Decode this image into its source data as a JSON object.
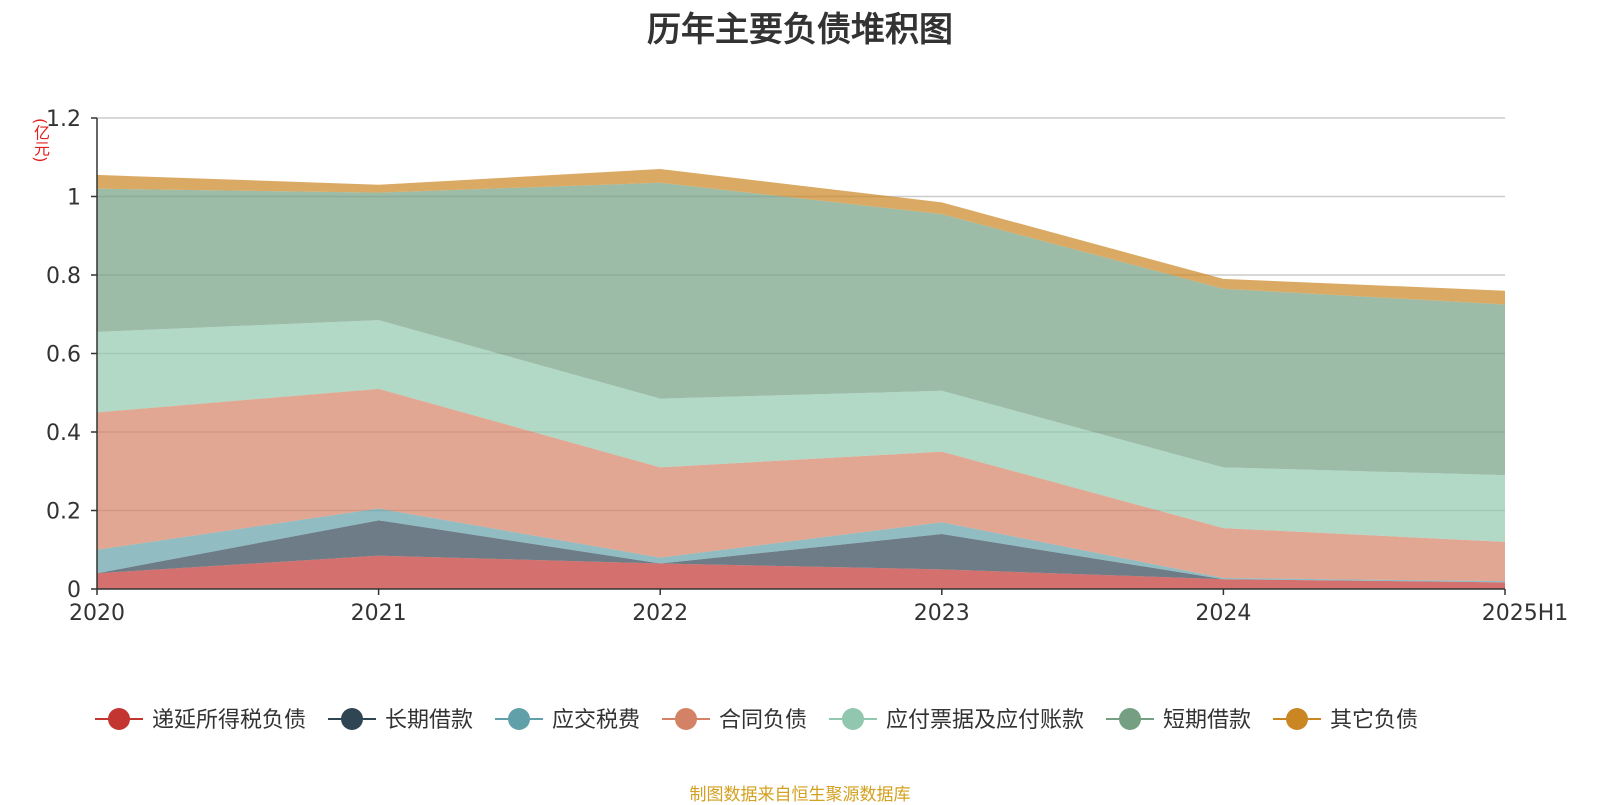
{
  "chart_data": {
    "type": "area",
    "stacked": true,
    "title": "历年主要负债堆积图",
    "unit": "(亿元)",
    "categories": [
      "2020",
      "2021",
      "2022",
      "2023",
      "2024",
      "2025H1"
    ],
    "ylim": [
      0,
      1.2
    ],
    "yticks": [
      0,
      0.2,
      0.4,
      0.6,
      0.8,
      1,
      1.2
    ],
    "ytick_labels": [
      "0",
      "0.2",
      "0.4",
      "0.6",
      "0.8",
      "1",
      "1.2"
    ],
    "grid": true,
    "legend_position": "bottom",
    "series": [
      {
        "name": "递延所得税负债",
        "color": "#c23531",
        "values": [
          0.04,
          0.085,
          0.065,
          0.05,
          0.025,
          0.017
        ]
      },
      {
        "name": "长期借款",
        "color": "#2f4554",
        "values": [
          0.0,
          0.09,
          0.0,
          0.09,
          0.0,
          0.0
        ]
      },
      {
        "name": "应交税费",
        "color": "#61a0a8",
        "values": [
          0.06,
          0.03,
          0.015,
          0.03,
          0.003,
          0.003
        ]
      },
      {
        "name": "合同负债",
        "color": "#d48265",
        "values": [
          0.35,
          0.305,
          0.23,
          0.18,
          0.127,
          0.1
        ]
      },
      {
        "name": "应付票据及应付账款",
        "color": "#91c7ae",
        "values": [
          0.205,
          0.175,
          0.175,
          0.155,
          0.155,
          0.17
        ]
      },
      {
        "name": "短期借款",
        "color": "#749f83",
        "values": [
          0.365,
          0.325,
          0.55,
          0.45,
          0.455,
          0.435
        ]
      },
      {
        "name": "其它负债",
        "color": "#ca8622",
        "values": [
          0.035,
          0.02,
          0.035,
          0.03,
          0.025,
          0.035
        ]
      }
    ]
  },
  "footer": {
    "source": "制图数据来自恒生聚源数据库"
  }
}
